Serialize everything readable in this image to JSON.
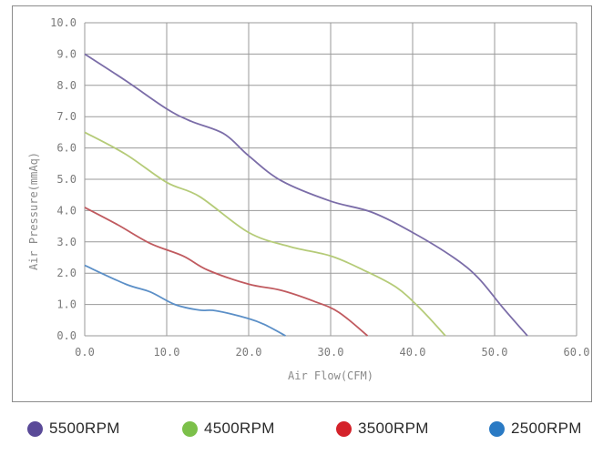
{
  "chart_data": {
    "type": "line",
    "xlabel": "Air Flow(CFM)",
    "ylabel": "Air Pressure(mmAq)",
    "xlim": [
      0,
      60
    ],
    "ylim": [
      0,
      10
    ],
    "x_ticks": [
      "0.0",
      "10.0",
      "20.0",
      "30.0",
      "40.0",
      "50.0",
      "60.0"
    ],
    "y_ticks": [
      "0.0",
      "1.0",
      "2.0",
      "3.0",
      "4.0",
      "5.0",
      "6.0",
      "7.0",
      "8.0",
      "9.0",
      "10.0"
    ],
    "grid": true,
    "legend_position": "bottom",
    "series": [
      {
        "name": "5500RPM",
        "color": "#7b6da8",
        "points": [
          [
            0,
            9.0
          ],
          [
            5,
            8.15
          ],
          [
            10,
            7.25
          ],
          [
            13,
            6.85
          ],
          [
            17,
            6.45
          ],
          [
            20,
            5.75
          ],
          [
            24,
            4.95
          ],
          [
            30,
            4.3
          ],
          [
            35,
            3.95
          ],
          [
            40,
            3.3
          ],
          [
            45,
            2.5
          ],
          [
            48,
            1.85
          ],
          [
            51,
            0.9
          ],
          [
            54,
            0.0
          ]
        ]
      },
      {
        "name": "4500RPM",
        "color": "#b5cb78",
        "points": [
          [
            0,
            6.5
          ],
          [
            5,
            5.8
          ],
          [
            10,
            4.9
          ],
          [
            14,
            4.45
          ],
          [
            20,
            3.3
          ],
          [
            25,
            2.85
          ],
          [
            30,
            2.55
          ],
          [
            34,
            2.1
          ],
          [
            38,
            1.55
          ],
          [
            41,
            0.85
          ],
          [
            44,
            0.0
          ]
        ]
      },
      {
        "name": "3500RPM",
        "color": "#c05a5f",
        "points": [
          [
            0,
            4.1
          ],
          [
            4,
            3.55
          ],
          [
            8,
            2.95
          ],
          [
            12,
            2.55
          ],
          [
            15,
            2.1
          ],
          [
            20,
            1.65
          ],
          [
            24,
            1.45
          ],
          [
            28,
            1.1
          ],
          [
            31,
            0.75
          ],
          [
            34.5,
            0.0
          ]
        ]
      },
      {
        "name": "2500RPM",
        "color": "#5b8fc7",
        "points": [
          [
            0,
            2.25
          ],
          [
            5,
            1.65
          ],
          [
            8,
            1.4
          ],
          [
            11,
            1.0
          ],
          [
            14,
            0.82
          ],
          [
            16,
            0.8
          ],
          [
            20,
            0.55
          ],
          [
            22,
            0.35
          ],
          [
            24.5,
            0.0
          ]
        ]
      }
    ]
  },
  "legend": [
    {
      "label": "5500RPM",
      "color": "#5a4a98"
    },
    {
      "label": "4500RPM",
      "color": "#7cc04a"
    },
    {
      "label": "3500RPM",
      "color": "#d4222a"
    },
    {
      "label": "2500RPM",
      "color": "#2a7ac4"
    }
  ]
}
